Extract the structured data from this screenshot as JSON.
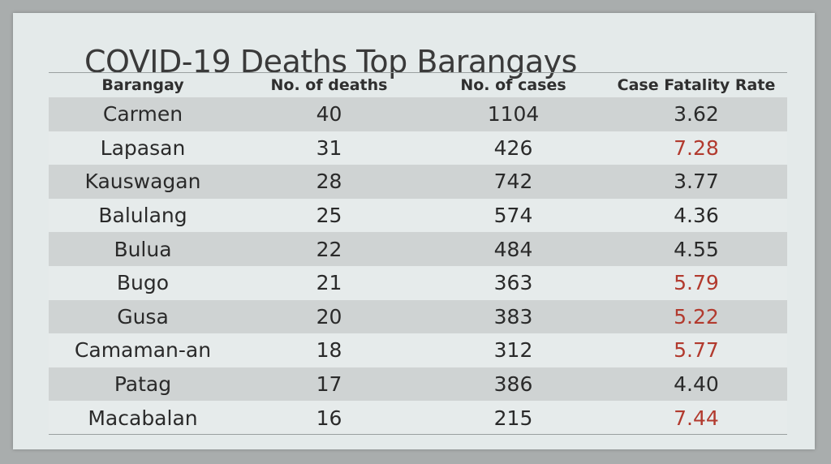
{
  "title": "COVID-19 Deaths Top Barangays",
  "highlight_color": "#b23a2e",
  "columns": [
    "Barangay",
    "No. of deaths",
    "No. of cases",
    "Case Fatality Rate"
  ],
  "rows": [
    {
      "barangay": "Carmen",
      "deaths": "40",
      "cases": "1104",
      "cfr": "3.62",
      "highlight": false
    },
    {
      "barangay": "Lapasan",
      "deaths": "31",
      "cases": "426",
      "cfr": "7.28",
      "highlight": true
    },
    {
      "barangay": "Kauswagan",
      "deaths": "28",
      "cases": "742",
      "cfr": "3.77",
      "highlight": false
    },
    {
      "barangay": "Balulang",
      "deaths": "25",
      "cases": "574",
      "cfr": "4.36",
      "highlight": false
    },
    {
      "barangay": "Bulua",
      "deaths": "22",
      "cases": "484",
      "cfr": "4.55",
      "highlight": false
    },
    {
      "barangay": "Bugo",
      "deaths": "21",
      "cases": "363",
      "cfr": "5.79",
      "highlight": true
    },
    {
      "barangay": "Gusa",
      "deaths": "20",
      "cases": "383",
      "cfr": "5.22",
      "highlight": true
    },
    {
      "barangay": "Camaman-an",
      "deaths": "18",
      "cases": "312",
      "cfr": "5.77",
      "highlight": true
    },
    {
      "barangay": "Patag",
      "deaths": "17",
      "cases": "386",
      "cfr": "4.40",
      "highlight": false
    },
    {
      "barangay": "Macabalan",
      "deaths": "16",
      "cases": "215",
      "cfr": "7.44",
      "highlight": true
    }
  ]
}
